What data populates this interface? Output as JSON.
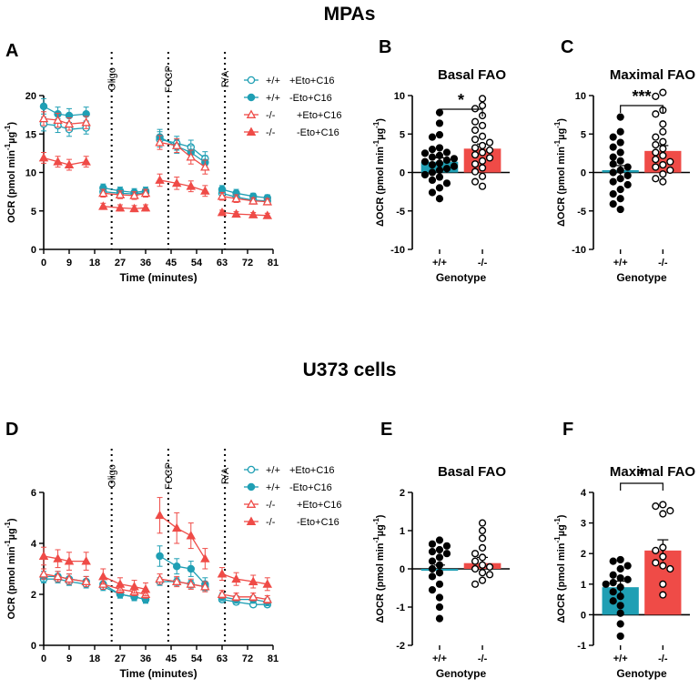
{
  "figure": {
    "section_top_title": "MPAs",
    "section_bottom_title": "U373 cells"
  },
  "colors": {
    "teal": "#1f9fb4",
    "red": "#ef4b47",
    "black": "#000000"
  },
  "chart_data": [
    {
      "panel": "A",
      "type": "line",
      "title": "",
      "xlabel": "Time (minutes)",
      "ylabel_parts": [
        "OCR (pmol min",
        "-1",
        "µg",
        "-1",
        ")"
      ],
      "x": [
        0,
        9,
        18,
        27,
        36,
        45,
        54,
        63,
        72,
        81
      ],
      "x_values": [
        0,
        5,
        9,
        15,
        21,
        27,
        32,
        36,
        41,
        47,
        52,
        57,
        63,
        68,
        74,
        79
      ],
      "xticks": [
        "0",
        "9",
        "18",
        "27",
        "36",
        "45",
        "54",
        "63",
        "72",
        "81"
      ],
      "yticks": [
        "0",
        "5",
        "10",
        "15",
        "20"
      ],
      "ylim": [
        0,
        20
      ],
      "xlim": [
        0,
        81
      ],
      "injections": [
        {
          "label": "Oligo",
          "x": 24
        },
        {
          "label": "FCCP",
          "x": 44
        },
        {
          "label": "R/A",
          "x": 64
        }
      ],
      "series": [
        {
          "name": "+/+ +Eto+C16",
          "legend_a": "+/+",
          "legend_b": "+Eto+C16",
          "color": "teal",
          "marker": "circle-open",
          "values": [
            16.3,
            16.1,
            15.6,
            15.8,
            7.5,
            7.3,
            7.2,
            7.4,
            14.3,
            13.8,
            13.3,
            11.8,
            7.3,
            6.8,
            6.4,
            6.3
          ],
          "err": [
            0.9,
            0.9,
            0.9,
            0.8,
            0.5,
            0.5,
            0.5,
            0.5,
            1.0,
            0.9,
            0.9,
            0.9,
            0.5,
            0.5,
            0.4,
            0.4
          ]
        },
        {
          "name": "+/+ -Eto+C16",
          "legend_a": "+/+",
          "legend_b": "-Eto+C16",
          "color": "teal",
          "marker": "circle-filled",
          "values": [
            18.6,
            17.6,
            17.4,
            17.6,
            8.0,
            7.6,
            7.4,
            7.6,
            14.6,
            13.4,
            12.6,
            11.3,
            7.8,
            7.3,
            6.9,
            6.7
          ],
          "err": [
            1.0,
            0.9,
            0.9,
            0.9,
            0.5,
            0.5,
            0.5,
            0.5,
            1.0,
            0.9,
            0.9,
            0.9,
            0.5,
            0.5,
            0.4,
            0.4
          ]
        },
        {
          "name": "-/- +Eto+C16",
          "legend_a": "-/-",
          "legend_b": "+Eto+C16",
          "color": "red",
          "marker": "triangle-open",
          "values": [
            17.0,
            16.8,
            16.3,
            16.5,
            7.3,
            7.1,
            7.0,
            7.3,
            13.9,
            13.5,
            12.0,
            10.7,
            6.9,
            6.6,
            6.3,
            6.2
          ],
          "err": [
            0.9,
            0.9,
            0.8,
            0.8,
            0.5,
            0.5,
            0.5,
            0.5,
            0.9,
            0.9,
            0.9,
            0.9,
            0.5,
            0.5,
            0.4,
            0.4
          ]
        },
        {
          "name": "-/- -Eto+C16",
          "legend_a": "-/-",
          "legend_b": "-Eto+C16",
          "color": "red",
          "marker": "triangle-filled",
          "values": [
            11.9,
            11.4,
            11.0,
            11.4,
            5.6,
            5.4,
            5.3,
            5.4,
            9.0,
            8.6,
            8.2,
            7.6,
            4.8,
            4.6,
            4.5,
            4.4
          ],
          "err": [
            0.7,
            0.7,
            0.7,
            0.7,
            0.4,
            0.4,
            0.4,
            0.4,
            0.8,
            0.8,
            0.7,
            0.7,
            0.3,
            0.3,
            0.3,
            0.3
          ]
        }
      ]
    },
    {
      "panel": "B",
      "type": "scatter-bar",
      "title": "Basal FAO",
      "xlabel": "Genotype",
      "ylabel_parts": [
        "ΔOCR (pmol min",
        "-1",
        "µg",
        "-1",
        ")"
      ],
      "categories": [
        "+/+",
        "-/-"
      ],
      "yticks": [
        "-10",
        "-5",
        "0",
        "5",
        "10"
      ],
      "ylim": [
        -10,
        10
      ],
      "significance": "*",
      "groups": [
        {
          "name": "+/+",
          "color": "teal",
          "mean": 1.4,
          "sem": 0.5,
          "marker": "filled",
          "points": [
            7.8,
            6.4,
            4.9,
            4.6,
            3.2,
            3.0,
            2.6,
            2.5,
            2.2,
            2.0,
            1.8,
            1.6,
            1.4,
            1.2,
            1.0,
            0.8,
            0.5,
            0.3,
            0.0,
            -0.3,
            -0.6,
            -1.0,
            -1.4,
            -2.0,
            -2.6,
            -3.4
          ]
        },
        {
          "name": "-/-",
          "color": "red",
          "mean": 3.1,
          "sem": 0.6,
          "marker": "open",
          "points": [
            9.6,
            8.7,
            8.3,
            7.4,
            6.6,
            6.1,
            5.5,
            4.7,
            4.3,
            3.9,
            3.5,
            3.2,
            2.9,
            2.6,
            2.3,
            1.9,
            1.5,
            1.1,
            0.6,
            0.1,
            -0.5,
            -1.2,
            -1.8
          ]
        }
      ]
    },
    {
      "panel": "C",
      "type": "scatter-bar",
      "title": "Maximal FAO",
      "xlabel": "Genotype",
      "ylabel_parts": [
        "ΔOCR (pmol min",
        "-1",
        "µg",
        "-1",
        ")"
      ],
      "categories": [
        "+/+",
        "-/-"
      ],
      "yticks": [
        "-10",
        "-5",
        "0",
        "5",
        "10"
      ],
      "ylim": [
        -10,
        10
      ],
      "significance": "***",
      "groups": [
        {
          "name": "+/+",
          "color": "teal",
          "mean": 0.3,
          "sem": 0.6,
          "marker": "filled",
          "points": [
            7.2,
            5.3,
            4.6,
            3.9,
            3.3,
            2.6,
            2.0,
            1.5,
            1.1,
            0.7,
            0.3,
            0.0,
            -0.4,
            -0.8,
            -1.2,
            -1.6,
            -2.2,
            -2.8,
            -3.4,
            -4.1,
            -4.8
          ]
        },
        {
          "name": "-/-",
          "color": "red",
          "mean": 2.8,
          "sem": 0.7,
          "marker": "open",
          "points": [
            10.4,
            9.9,
            8.1,
            7.6,
            6.3,
            5.3,
            4.6,
            4.0,
            3.6,
            3.1,
            2.6,
            2.2,
            1.7,
            1.4,
            1.0,
            0.7,
            0.3,
            -0.2,
            -0.8,
            -1.2
          ]
        }
      ]
    },
    {
      "panel": "D",
      "type": "line",
      "title": "",
      "xlabel": "Time (minutes)",
      "ylabel_parts": [
        "OCR (pmol min",
        "-1",
        "µg",
        "-1",
        ")"
      ],
      "x_values": [
        0,
        5,
        9,
        15,
        21,
        27,
        32,
        36,
        41,
        47,
        52,
        57,
        63,
        68,
        74,
        79
      ],
      "xticks": [
        "0",
        "9",
        "18",
        "27",
        "36",
        "45",
        "54",
        "63",
        "72",
        "81"
      ],
      "yticks": [
        "0",
        "2",
        "4",
        "6"
      ],
      "ylim": [
        0,
        6
      ],
      "xlim": [
        0,
        81
      ],
      "injections": [
        {
          "label": "Oligo",
          "x": 24
        },
        {
          "label": "FCCP",
          "x": 44
        },
        {
          "label": "R/A",
          "x": 64
        }
      ],
      "series": [
        {
          "name": "+/+ +Eto+C16",
          "legend_a": "+/+",
          "legend_b": "+Eto+C16",
          "color": "teal",
          "marker": "circle-open",
          "values": [
            2.6,
            2.6,
            2.5,
            2.4,
            2.3,
            2.0,
            1.9,
            1.8,
            2.5,
            2.5,
            2.4,
            2.3,
            1.8,
            1.7,
            1.6,
            1.6
          ],
          "err": [
            0.15,
            0.15,
            0.15,
            0.15,
            0.15,
            0.12,
            0.12,
            0.12,
            0.15,
            0.15,
            0.15,
            0.15,
            0.1,
            0.1,
            0.1,
            0.1
          ]
        },
        {
          "name": "+/+ -Eto+C16",
          "legend_a": "+/+",
          "legend_b": "-Eto+C16",
          "color": "teal",
          "marker": "circle-filled",
          "values": [
            2.7,
            2.7,
            2.6,
            2.5,
            2.4,
            2.0,
            1.9,
            1.8,
            3.5,
            3.1,
            3.0,
            2.4,
            1.9,
            1.8,
            1.8,
            1.7
          ],
          "err": [
            0.2,
            0.2,
            0.2,
            0.2,
            0.2,
            0.15,
            0.15,
            0.15,
            0.4,
            0.3,
            0.3,
            0.25,
            0.15,
            0.15,
            0.15,
            0.15
          ]
        },
        {
          "name": "-/- +Eto+C16",
          "legend_a": "-/-",
          "legend_b": "+Eto+C16",
          "color": "red",
          "marker": "triangle-open",
          "values": [
            2.8,
            2.7,
            2.6,
            2.5,
            2.4,
            2.2,
            2.1,
            2.0,
            2.6,
            2.5,
            2.4,
            2.3,
            2.0,
            1.9,
            1.9,
            1.8
          ],
          "err": [
            0.2,
            0.2,
            0.2,
            0.2,
            0.2,
            0.15,
            0.15,
            0.15,
            0.2,
            0.2,
            0.2,
            0.2,
            0.15,
            0.15,
            0.15,
            0.15
          ]
        },
        {
          "name": "-/- -Eto+C16",
          "legend_a": "-/-",
          "legend_b": "-Eto+C16",
          "color": "red",
          "marker": "triangle-filled",
          "values": [
            3.5,
            3.4,
            3.3,
            3.3,
            2.7,
            2.4,
            2.3,
            2.2,
            5.1,
            4.6,
            4.3,
            3.4,
            2.8,
            2.6,
            2.5,
            2.4
          ],
          "err": [
            0.35,
            0.35,
            0.35,
            0.35,
            0.3,
            0.25,
            0.25,
            0.25,
            0.7,
            0.6,
            0.5,
            0.4,
            0.25,
            0.25,
            0.25,
            0.25
          ]
        }
      ]
    },
    {
      "panel": "E",
      "type": "scatter-bar",
      "title": "Basal FAO",
      "xlabel": "Genotype",
      "ylabel_parts": [
        "ΔOCR (pmol min",
        "-1",
        "µg",
        "-1",
        ")"
      ],
      "categories": [
        "+/+",
        "-/-"
      ],
      "yticks": [
        "-2",
        "-1",
        "0",
        "1",
        "2"
      ],
      "ylim": [
        -2,
        2
      ],
      "significance": "",
      "groups": [
        {
          "name": "+/+",
          "color": "teal",
          "mean": -0.05,
          "sem": 0.15,
          "marker": "filled",
          "points": [
            0.75,
            0.65,
            0.6,
            0.5,
            0.45,
            0.4,
            0.3,
            0.2,
            0.1,
            0.0,
            -0.1,
            -0.2,
            -0.4,
            -0.55,
            -0.75,
            -1.0,
            -1.3
          ]
        },
        {
          "name": "-/-",
          "color": "red",
          "mean": 0.15,
          "sem": 0.15,
          "marker": "open",
          "points": [
            1.2,
            1.0,
            0.8,
            0.55,
            0.4,
            0.3,
            0.2,
            0.1,
            0.05,
            0.0,
            -0.1,
            -0.15,
            -0.3,
            -0.4
          ]
        }
      ]
    },
    {
      "panel": "F",
      "type": "scatter-bar",
      "title": "Maximal FAO",
      "xlabel": "Genotype",
      "ylabel_parts": [
        "ΔOCR (pmol min",
        "-1",
        "µg",
        "-1",
        ")"
      ],
      "categories": [
        "+/+",
        "-/-"
      ],
      "yticks": [
        "-1",
        "0",
        "1",
        "2",
        "3",
        "4"
      ],
      "ylim": [
        -1,
        4
      ],
      "significance": "*",
      "groups": [
        {
          "name": "+/+",
          "color": "teal",
          "mean": 0.9,
          "sem": 0.2,
          "marker": "filled",
          "points": [
            1.8,
            1.75,
            1.6,
            1.5,
            1.3,
            1.2,
            1.15,
            1.05,
            1.0,
            0.9,
            0.75,
            0.6,
            0.45,
            0.3,
            0.05,
            -0.3,
            -0.7
          ]
        },
        {
          "name": "-/-",
          "color": "red",
          "mean": 2.1,
          "sem": 0.35,
          "marker": "open",
          "points": [
            3.6,
            3.55,
            3.4,
            3.3,
            2.2,
            2.1,
            1.9,
            1.7,
            1.6,
            1.5,
            1.0,
            0.65
          ]
        }
      ]
    }
  ]
}
